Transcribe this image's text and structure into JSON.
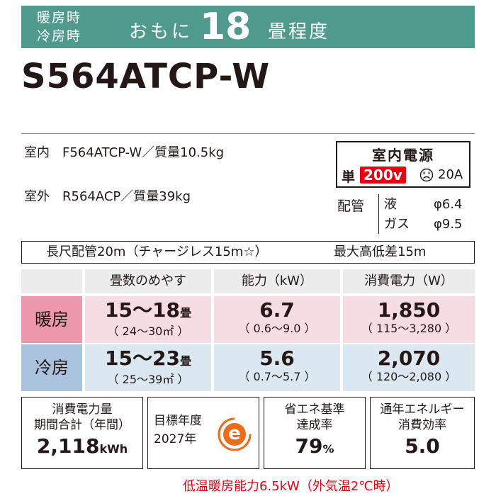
{
  "header": {
    "mode_heat": "暖房時",
    "mode_cool": "冷房時",
    "omoni": "おもに",
    "tatami": "18",
    "unit": "畳程度"
  },
  "model": "S564ATCP-W",
  "indoor": "室内　F564ATCP-W／質量10.5kg",
  "outdoor": "室外　R564ACP／質量39kg",
  "power": {
    "title": "室内電源",
    "single": "単",
    "voltage": "200v",
    "plug_icon": "plug-face-icon",
    "ampere": "20A"
  },
  "piping": {
    "label": "配管",
    "liquid_label": "液",
    "liquid_value": "φ6.4",
    "gas_label": "ガス",
    "gas_value": "φ9.5"
  },
  "long_pipe": {
    "text": "長尺配管20m（チャージレス15m☆）",
    "height": "最大高低差15m"
  },
  "table": {
    "headers": [
      "畳数のめやす",
      "能力（kW）",
      "消費電力（W）"
    ],
    "heating": {
      "label": "暖房",
      "tatami": "15～18",
      "tatami_unit": "畳",
      "tatami_range": "（ 24～30㎡ ）",
      "capacity": "6.7",
      "capacity_range": "（ 0.6～9.0 ）",
      "power": "1,850",
      "power_range": "（ 115～3,280 ）"
    },
    "cooling": {
      "label": "冷房",
      "tatami": "15～23",
      "tatami_unit": "畳",
      "tatami_range": "（ 25～39㎡ ）",
      "capacity": "5.6",
      "capacity_range": "（ 0.7～5.7 ）",
      "power": "2,070",
      "power_range": "（ 120～2,080 ）"
    }
  },
  "annual": {
    "line1": "消費電力量",
    "line2": "期間合計（年間）",
    "value": "2,118",
    "unit": "kWh"
  },
  "target": {
    "line1": "目標年度",
    "line2": "2027年",
    "mark": "e"
  },
  "achievement": {
    "line1": "省エネ基準",
    "line2": "達成率",
    "value": "79",
    "unit": "%"
  },
  "efficiency": {
    "line1": "通年エネルギー",
    "line2": "消費効率",
    "value": "5.0"
  },
  "low_temp": "低温暖房能力6.5kW（外気温2℃時）",
  "colors": {
    "header_green": "#4f9a8c",
    "heat_pink": "#ec97ac",
    "cool_blue": "#a9c3de",
    "accent_red": "#e60012",
    "mark_orange": "#ea6c1d"
  }
}
